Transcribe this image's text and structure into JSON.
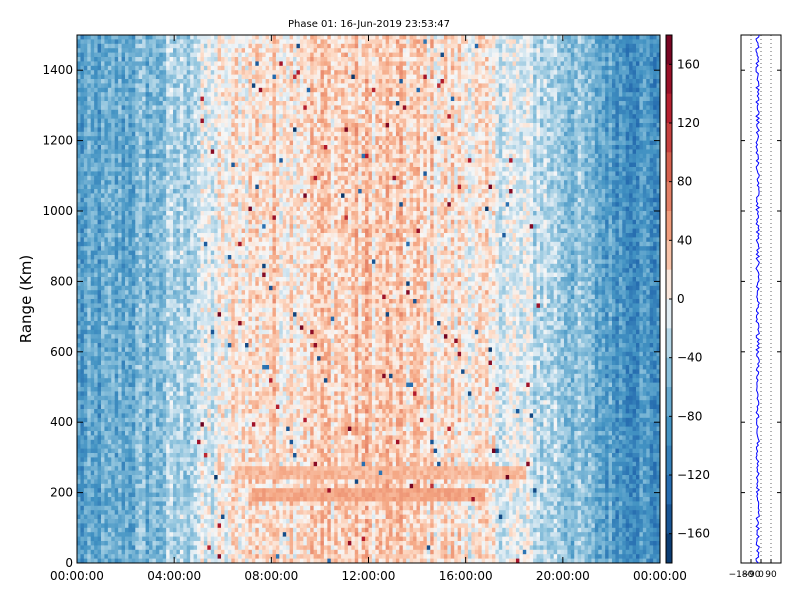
{
  "title": "Phase 01: 16-Jun-2019 23:53:47",
  "chart_data": [
    {
      "type": "heatmap",
      "title": "Phase 01: 16-Jun-2019 23:53:47",
      "xlabel": "",
      "ylabel": "Range (Km)",
      "x_ticks": [
        "00:00:00",
        "04:00:00",
        "08:00:00",
        "12:00:00",
        "16:00:00",
        "20:00:00",
        "00:00:00"
      ],
      "x_tick_hours": [
        0,
        4,
        8,
        12,
        16,
        20,
        24
      ],
      "xlim_hours": [
        0,
        24
      ],
      "y_ticks": [
        "0",
        "200",
        "400",
        "600",
        "800",
        "1000",
        "1200",
        "1400"
      ],
      "y_tick_values": [
        0,
        200,
        400,
        600,
        800,
        1000,
        1200,
        1400
      ],
      "ylim": [
        0,
        1500
      ],
      "colormap": "RdBu_r",
      "colorbar": {
        "ticks": [
          "160",
          "120",
          "80",
          "40",
          "0",
          "−40",
          "−80",
          "−120",
          "−160"
        ],
        "tick_values": [
          160,
          120,
          80,
          40,
          0,
          -40,
          -80,
          -120,
          -160
        ],
        "range": [
          -180,
          180
        ]
      },
      "pattern": {
        "description_hours_phase": [
          {
            "hours": 0,
            "phase": -85
          },
          {
            "hours": 3,
            "phase": -60
          },
          {
            "hours": 5,
            "phase": -20
          },
          {
            "hours": 7,
            "phase": 15
          },
          {
            "hours": 12,
            "phase": 25
          },
          {
            "hours": 16,
            "phase": 10
          },
          {
            "hours": 19.5,
            "phase": -30
          },
          {
            "hours": 22,
            "phase": -80
          },
          {
            "hours": 24,
            "phase": -95
          }
        ],
        "bands": [
          {
            "start_hours": 7.2,
            "end_hours": 16.8,
            "range_km": 195,
            "phase": 45
          },
          {
            "start_hours": 6.5,
            "end_hours": 18.5,
            "range_km": 260,
            "phase": 35
          }
        ]
      }
    },
    {
      "type": "line",
      "xlabel": "",
      "ylabel": "",
      "x_ticks": [
        "−180",
        "−90",
        "0",
        "90"
      ],
      "x_tick_values": [
        -180,
        -90,
        0,
        90
      ],
      "xlim": [
        -180,
        180
      ],
      "ylim": [
        0,
        1500
      ],
      "series": [
        {
          "color": "#0000ff",
          "mean": -30,
          "spread": 15
        }
      ],
      "grid": true
    }
  ]
}
